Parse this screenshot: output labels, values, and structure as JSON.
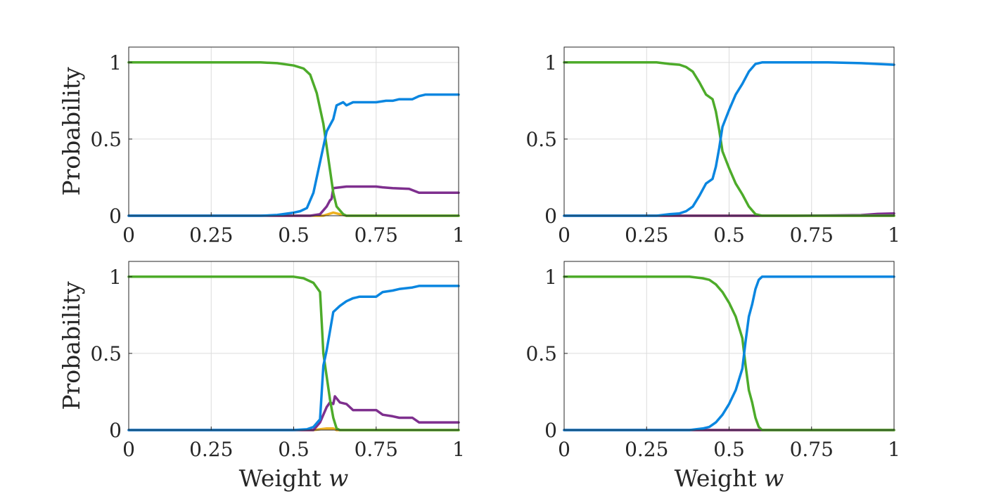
{
  "chart_data": [
    {
      "type": "line",
      "ylabel": "Probability",
      "xlabel": "",
      "xlim": [
        0,
        1
      ],
      "ylim": [
        0,
        1.1
      ],
      "xticks": [
        0,
        0.25,
        0.5,
        0.75,
        1
      ],
      "xtick_labels": [
        "0",
        "0.25",
        "0.5",
        "0.75",
        "1"
      ],
      "yticks": [
        0,
        0.5,
        1
      ],
      "ytick_labels": [
        "0",
        "0.5",
        "1"
      ],
      "grid": true,
      "series": [
        {
          "color": "#EDB120",
          "points": [
            [
              0,
              0
            ],
            [
              0.55,
              0
            ],
            [
              0.59,
              0
            ],
            [
              0.62,
              0.02
            ],
            [
              0.64,
              0.01
            ],
            [
              0.66,
              0
            ],
            [
              1,
              0
            ]
          ]
        },
        {
          "color": "#7E2F8E",
          "points": [
            [
              0,
              0
            ],
            [
              0.55,
              0
            ],
            [
              0.58,
              0.01
            ],
            [
              0.6,
              0.06
            ],
            [
              0.61,
              0.1
            ],
            [
              0.615,
              0.11
            ],
            [
              0.62,
              0.18
            ],
            [
              0.66,
              0.19
            ],
            [
              0.7,
              0.19
            ],
            [
              0.75,
              0.19
            ],
            [
              0.77,
              0.185
            ],
            [
              0.8,
              0.18
            ],
            [
              0.85,
              0.175
            ],
            [
              0.88,
              0.15
            ],
            [
              0.92,
              0.15
            ],
            [
              1,
              0.15
            ]
          ]
        },
        {
          "color": "#4DAB2A",
          "points": [
            [
              0,
              1
            ],
            [
              0.4,
              1
            ],
            [
              0.45,
              0.995
            ],
            [
              0.5,
              0.98
            ],
            [
              0.53,
              0.96
            ],
            [
              0.55,
              0.92
            ],
            [
              0.57,
              0.8
            ],
            [
              0.59,
              0.6
            ],
            [
              0.6,
              0.45
            ],
            [
              0.61,
              0.3
            ],
            [
              0.62,
              0.15
            ],
            [
              0.63,
              0.06
            ],
            [
              0.65,
              0.01
            ],
            [
              0.66,
              0
            ],
            [
              1,
              0
            ]
          ]
        },
        {
          "color": "#0A86E0",
          "points": [
            [
              0,
              0
            ],
            [
              0.4,
              0
            ],
            [
              0.45,
              0.005
            ],
            [
              0.5,
              0.02
            ],
            [
              0.52,
              0.03
            ],
            [
              0.54,
              0.05
            ],
            [
              0.56,
              0.15
            ],
            [
              0.58,
              0.35
            ],
            [
              0.6,
              0.55
            ],
            [
              0.62,
              0.63
            ],
            [
              0.63,
              0.72
            ],
            [
              0.65,
              0.74
            ],
            [
              0.66,
              0.72
            ],
            [
              0.68,
              0.74
            ],
            [
              0.7,
              0.74
            ],
            [
              0.75,
              0.74
            ],
            [
              0.78,
              0.75
            ],
            [
              0.8,
              0.75
            ],
            [
              0.82,
              0.76
            ],
            [
              0.86,
              0.76
            ],
            [
              0.88,
              0.78
            ],
            [
              0.9,
              0.79
            ],
            [
              0.95,
              0.79
            ],
            [
              1,
              0.79
            ]
          ]
        }
      ]
    },
    {
      "type": "line",
      "ylabel": "",
      "xlabel": "",
      "xlim": [
        0,
        1
      ],
      "ylim": [
        0,
        1.1
      ],
      "xticks": [
        0,
        0.25,
        0.5,
        0.75,
        1
      ],
      "xtick_labels": [
        "0",
        "0.25",
        "0.5",
        "0.75",
        "1"
      ],
      "yticks": [
        0,
        0.5,
        1
      ],
      "ytick_labels": [
        "0",
        "0.5",
        "1"
      ],
      "grid": true,
      "series": [
        {
          "color": "#EDB120",
          "points": [
            [
              0,
              0
            ],
            [
              1,
              0
            ]
          ]
        },
        {
          "color": "#7E2F8E",
          "points": [
            [
              0,
              0
            ],
            [
              0.6,
              0
            ],
            [
              0.7,
              0
            ],
            [
              0.8,
              0.002
            ],
            [
              0.9,
              0.004
            ],
            [
              0.95,
              0.012
            ],
            [
              1,
              0.015
            ]
          ]
        },
        {
          "color": "#4DAB2A",
          "points": [
            [
              0,
              1
            ],
            [
              0.28,
              1
            ],
            [
              0.32,
              0.99
            ],
            [
              0.35,
              0.985
            ],
            [
              0.37,
              0.97
            ],
            [
              0.39,
              0.94
            ],
            [
              0.41,
              0.87
            ],
            [
              0.43,
              0.79
            ],
            [
              0.45,
              0.76
            ],
            [
              0.46,
              0.68
            ],
            [
              0.47,
              0.56
            ],
            [
              0.48,
              0.42
            ],
            [
              0.5,
              0.31
            ],
            [
              0.52,
              0.21
            ],
            [
              0.54,
              0.14
            ],
            [
              0.56,
              0.06
            ],
            [
              0.58,
              0.01
            ],
            [
              0.6,
              0
            ],
            [
              1,
              0
            ]
          ]
        },
        {
          "color": "#0A86E0",
          "points": [
            [
              0,
              0
            ],
            [
              0.28,
              0
            ],
            [
              0.32,
              0.01
            ],
            [
              0.35,
              0.015
            ],
            [
              0.37,
              0.03
            ],
            [
              0.39,
              0.06
            ],
            [
              0.41,
              0.13
            ],
            [
              0.43,
              0.21
            ],
            [
              0.45,
              0.24
            ],
            [
              0.46,
              0.32
            ],
            [
              0.47,
              0.44
            ],
            [
              0.48,
              0.58
            ],
            [
              0.5,
              0.69
            ],
            [
              0.52,
              0.79
            ],
            [
              0.54,
              0.86
            ],
            [
              0.56,
              0.94
            ],
            [
              0.58,
              0.99
            ],
            [
              0.6,
              1
            ],
            [
              0.8,
              1
            ],
            [
              0.9,
              0.995
            ],
            [
              1,
              0.985
            ]
          ]
        }
      ]
    },
    {
      "type": "line",
      "ylabel": "Probability",
      "xlabel": "Weight w",
      "xlim": [
        0,
        1
      ],
      "ylim": [
        0,
        1.1
      ],
      "xticks": [
        0,
        0.25,
        0.5,
        0.75,
        1
      ],
      "xtick_labels": [
        "0",
        "0.25",
        "0.5",
        "0.75",
        "1"
      ],
      "yticks": [
        0,
        0.5,
        1
      ],
      "ytick_labels": [
        "0",
        "0.5",
        "1"
      ],
      "grid": true,
      "series": [
        {
          "color": "#EDB120",
          "points": [
            [
              0,
              0
            ],
            [
              0.56,
              0
            ],
            [
              0.6,
              0.01
            ],
            [
              0.62,
              0.01
            ],
            [
              0.63,
              0
            ],
            [
              1,
              0
            ]
          ]
        },
        {
          "color": "#7E2F8E",
          "points": [
            [
              0,
              0
            ],
            [
              0.56,
              0
            ],
            [
              0.58,
              0.05
            ],
            [
              0.6,
              0.15
            ],
            [
              0.61,
              0.18
            ],
            [
              0.62,
              0.17
            ],
            [
              0.625,
              0.22
            ],
            [
              0.64,
              0.18
            ],
            [
              0.66,
              0.17
            ],
            [
              0.68,
              0.13
            ],
            [
              0.72,
              0.13
            ],
            [
              0.75,
              0.13
            ],
            [
              0.77,
              0.1
            ],
            [
              0.8,
              0.09
            ],
            [
              0.82,
              0.08
            ],
            [
              0.86,
              0.08
            ],
            [
              0.88,
              0.05
            ],
            [
              0.9,
              0.05
            ],
            [
              1,
              0.05
            ]
          ]
        },
        {
          "color": "#4DAB2A",
          "points": [
            [
              0,
              1
            ],
            [
              0.5,
              1
            ],
            [
              0.53,
              0.99
            ],
            [
              0.56,
              0.96
            ],
            [
              0.58,
              0.9
            ],
            [
              0.585,
              0.7
            ],
            [
              0.59,
              0.5
            ],
            [
              0.6,
              0.35
            ],
            [
              0.61,
              0.2
            ],
            [
              0.62,
              0.08
            ],
            [
              0.63,
              0.01
            ],
            [
              0.64,
              0
            ],
            [
              1,
              0
            ]
          ]
        },
        {
          "color": "#0A86E0",
          "points": [
            [
              0,
              0
            ],
            [
              0.5,
              0
            ],
            [
              0.54,
              0.005
            ],
            [
              0.56,
              0.02
            ],
            [
              0.58,
              0.07
            ],
            [
              0.59,
              0.42
            ],
            [
              0.6,
              0.52
            ],
            [
              0.62,
              0.77
            ],
            [
              0.64,
              0.81
            ],
            [
              0.66,
              0.84
            ],
            [
              0.68,
              0.86
            ],
            [
              0.7,
              0.87
            ],
            [
              0.75,
              0.87
            ],
            [
              0.77,
              0.9
            ],
            [
              0.8,
              0.91
            ],
            [
              0.82,
              0.92
            ],
            [
              0.86,
              0.93
            ],
            [
              0.88,
              0.94
            ],
            [
              1,
              0.94
            ]
          ]
        }
      ]
    },
    {
      "type": "line",
      "ylabel": "",
      "xlabel": "Weight w",
      "xlim": [
        0,
        1
      ],
      "ylim": [
        0,
        1.1
      ],
      "xticks": [
        0,
        0.25,
        0.5,
        0.75,
        1
      ],
      "xtick_labels": [
        "0",
        "0.25",
        "0.5",
        "0.75",
        "1"
      ],
      "yticks": [
        0,
        0.5,
        1
      ],
      "ytick_labels": [
        "0",
        "0.5",
        "1"
      ],
      "grid": true,
      "series": [
        {
          "color": "#EDB120",
          "points": [
            [
              0,
              0
            ],
            [
              1,
              0
            ]
          ]
        },
        {
          "color": "#7E2F8E",
          "points": [
            [
              0,
              0
            ],
            [
              1,
              0
            ]
          ]
        },
        {
          "color": "#4DAB2A",
          "points": [
            [
              0,
              1
            ],
            [
              0.38,
              1
            ],
            [
              0.42,
              0.99
            ],
            [
              0.44,
              0.98
            ],
            [
              0.46,
              0.95
            ],
            [
              0.48,
              0.9
            ],
            [
              0.5,
              0.83
            ],
            [
              0.52,
              0.74
            ],
            [
              0.54,
              0.6
            ],
            [
              0.55,
              0.42
            ],
            [
              0.56,
              0.26
            ],
            [
              0.57,
              0.18
            ],
            [
              0.58,
              0.08
            ],
            [
              0.59,
              0.02
            ],
            [
              0.6,
              0
            ],
            [
              1,
              0
            ]
          ]
        },
        {
          "color": "#0A86E0",
          "points": [
            [
              0,
              0
            ],
            [
              0.38,
              0
            ],
            [
              0.42,
              0.01
            ],
            [
              0.44,
              0.02
            ],
            [
              0.46,
              0.05
            ],
            [
              0.48,
              0.1
            ],
            [
              0.5,
              0.17
            ],
            [
              0.52,
              0.26
            ],
            [
              0.54,
              0.4
            ],
            [
              0.55,
              0.58
            ],
            [
              0.56,
              0.74
            ],
            [
              0.57,
              0.82
            ],
            [
              0.58,
              0.92
            ],
            [
              0.59,
              0.98
            ],
            [
              0.6,
              1
            ],
            [
              1,
              1
            ]
          ]
        }
      ]
    }
  ]
}
